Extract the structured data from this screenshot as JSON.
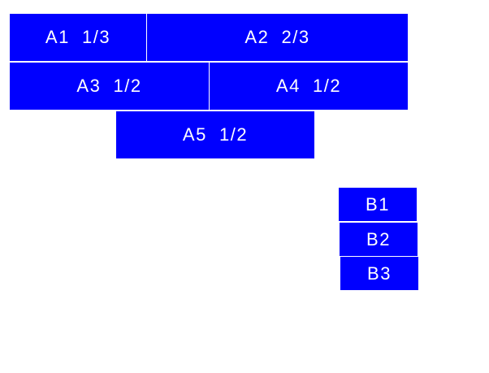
{
  "color": "#0000ff",
  "groupA": [
    {
      "label": "A1  1/3"
    },
    {
      "label": "A2  2/3"
    },
    {
      "label": "A3  1/2"
    },
    {
      "label": "A4  1/2"
    },
    {
      "label": "A5  1/2"
    }
  ],
  "groupB": [
    {
      "label": "B1"
    },
    {
      "label": "B2"
    },
    {
      "label": "B3"
    }
  ]
}
